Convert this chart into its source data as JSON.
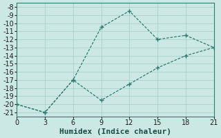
{
  "xlabel": "Humidex (Indice chaleur)",
  "line1_x": [
    0,
    3,
    6,
    9,
    12,
    15,
    18,
    21
  ],
  "line1_y": [
    -20,
    -21,
    -17,
    -10.5,
    -8.5,
    -12,
    -11.5,
    -13
  ],
  "line2_x": [
    0,
    3,
    6,
    9,
    12,
    15,
    18,
    21
  ],
  "line2_y": [
    -20,
    -21,
    -17,
    -19.5,
    -17.5,
    -15.5,
    -14.0,
    -13
  ],
  "line_color": "#2e7b6e",
  "bg_color": "#cce8e4",
  "grid_color": "#aacfcb",
  "xlim": [
    0,
    21
  ],
  "ylim": [
    -21.5,
    -7.5
  ],
  "xticks": [
    0,
    3,
    6,
    9,
    12,
    15,
    18,
    21
  ],
  "yticks": [
    -8,
    -9,
    -10,
    -11,
    -12,
    -13,
    -14,
    -15,
    -16,
    -17,
    -18,
    -19,
    -20,
    -21
  ],
  "label_fontsize": 8,
  "tick_fontsize": 7
}
